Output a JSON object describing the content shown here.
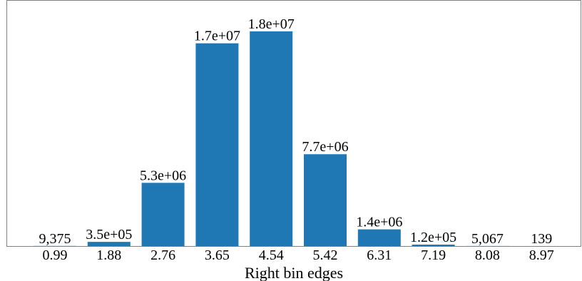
{
  "chart_data": {
    "type": "bar",
    "xlabel": "Right bin edges",
    "ylabel": "",
    "title": "",
    "categories": [
      "0.99",
      "1.88",
      "2.76",
      "3.65",
      "4.54",
      "5.42",
      "6.31",
      "7.19",
      "8.08",
      "8.97"
    ],
    "values": [
      9375,
      350000,
      5300000,
      17000000,
      18000000,
      7700000,
      1400000,
      120000,
      5067,
      139
    ],
    "data_labels": [
      "9,375",
      "3.5e+05",
      "5.3e+06",
      "1.7e+07",
      "1.8e+07",
      "7.7e+06",
      "1.4e+06",
      "1.2e+05",
      "5,067",
      "139"
    ],
    "ylim": [
      0,
      18000000
    ],
    "grid": false,
    "yaxis_visible": false,
    "colors": {
      "bar": "#1f77b4",
      "frame": "#808080",
      "text": "#000000"
    }
  }
}
